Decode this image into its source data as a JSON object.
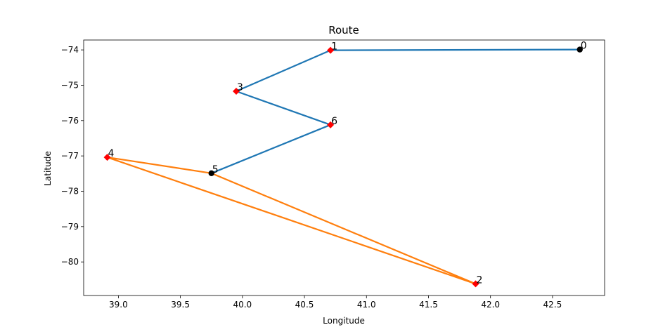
{
  "chart_data": {
    "type": "line",
    "title": "Route",
    "xlabel": "Longitude",
    "ylabel": "Latitude",
    "xlim": [
      38.72,
      42.92
    ],
    "ylim": [
      -80.95,
      -73.72
    ],
    "xticks": [
      "39.0",
      "39.5",
      "40.0",
      "40.5",
      "41.0",
      "41.5",
      "42.0",
      "42.5"
    ],
    "xtick_values": [
      39.0,
      39.5,
      40.0,
      40.5,
      41.0,
      41.5,
      42.0,
      42.5
    ],
    "yticks": [
      "−74",
      "−75",
      "−76",
      "−77",
      "−78",
      "−79",
      "−80"
    ],
    "ytick_values": [
      -74,
      -75,
      -76,
      -77,
      -78,
      -79,
      -80
    ],
    "grid": false,
    "points": [
      {
        "label": "0",
        "x": 42.72,
        "y": -73.99,
        "marker": "circle",
        "color": "#000000"
      },
      {
        "label": "1",
        "x": 40.71,
        "y": -74.01,
        "marker": "diamond",
        "color": "#ff0000"
      },
      {
        "label": "2",
        "x": 41.88,
        "y": -80.62,
        "marker": "diamond",
        "color": "#ff0000"
      },
      {
        "label": "3",
        "x": 39.95,
        "y": -75.17,
        "marker": "diamond",
        "color": "#ff0000"
      },
      {
        "label": "4",
        "x": 38.91,
        "y": -77.04,
        "marker": "diamond",
        "color": "#ff0000"
      },
      {
        "label": "5",
        "x": 39.75,
        "y": -77.49,
        "marker": "circle",
        "color": "#000000"
      },
      {
        "label": "6",
        "x": 40.71,
        "y": -76.12,
        "marker": "diamond",
        "color": "#ff0000"
      }
    ],
    "series": [
      {
        "color": "#1f77b4",
        "route": [
          "0",
          "1",
          "3",
          "6",
          "5"
        ]
      },
      {
        "color": "#ff7f0e",
        "route": [
          "5",
          "2",
          "4",
          "5"
        ]
      }
    ]
  }
}
